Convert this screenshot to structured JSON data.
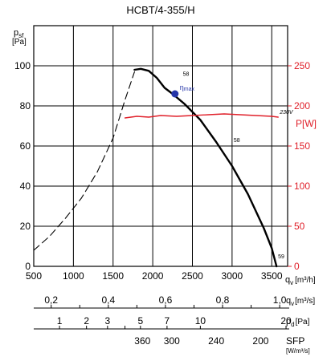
{
  "chart_data": {
    "type": "line",
    "title": "HCBT/4-355/H",
    "y_left_label_main": "p",
    "y_left_label_sub": "sf",
    "y_left_unit": "[Pa]",
    "y_right_label": "P[W]",
    "x_label_main": "q",
    "x_label_sub": "v",
    "x_unit": "[m³/h]",
    "xlim": [
      500,
      3700
    ],
    "ylim_left": [
      0,
      120
    ],
    "ylim_right": [
      0,
      300
    ],
    "x_ticks": [
      500,
      1000,
      1500,
      2000,
      2500,
      3000,
      3500
    ],
    "x_tick_labels": [
      "500",
      "1000",
      "1500",
      "2000",
      "2500",
      "3000",
      "3500"
    ],
    "y_left_ticks": [
      0,
      20,
      40,
      60,
      80,
      100
    ],
    "y_left_tick_labels": [
      "0",
      "20",
      "40",
      "60",
      "80",
      "100"
    ],
    "y_right_ticks": [
      0,
      50,
      100,
      150,
      200,
      250
    ],
    "y_right_tick_labels": [
      "0",
      "50",
      "100",
      "150",
      "200",
      "250"
    ],
    "grid": true,
    "series": [
      {
        "name": "",
        "axis": "left",
        "style": "dashed",
        "x": [
          500,
          700,
          900,
          1100,
          1300,
          1500,
          1650,
          1770
        ],
        "y": [
          8,
          15,
          24,
          34,
          47,
          64,
          83,
          97
        ]
      },
      {
        "name": "",
        "axis": "left",
        "style": "solid",
        "x": [
          1770,
          1850,
          1950,
          2050,
          2150,
          2250,
          2400,
          2600,
          2800,
          3000,
          3200,
          3400,
          3500,
          3560
        ],
        "y": [
          98,
          98.5,
          97.5,
          94,
          89,
          86,
          81,
          73,
          62,
          50,
          36,
          19,
          9,
          0
        ]
      },
      {
        "name": "230V",
        "axis": "right",
        "style": "solid",
        "color": "#e0202a",
        "x": [
          1650,
          1800,
          1950,
          2100,
          2300,
          2500,
          2700,
          2900,
          3100,
          3300,
          3500,
          3580
        ],
        "y": [
          185,
          187,
          186,
          188,
          187,
          188,
          189,
          190,
          189,
          188,
          187,
          186
        ]
      }
    ],
    "eta_point": {
      "x": 2280,
      "y": 86,
      "label_main": "η",
      "label_sub": "max",
      "color": "#2535a8"
    },
    "curve_labels": [
      {
        "text": "58",
        "x": 2380,
        "y": 95
      },
      {
        "text": "58",
        "x": 3020,
        "y": 62
      },
      {
        "text": "59",
        "x": 3580,
        "y": 4
      }
    ],
    "bottom_scales": [
      {
        "id": "m3s",
        "label_main": "q",
        "label_sub": "v",
        "unit": "[m³/s]",
        "ticks": [
          {
            "value": 0.2,
            "label": "0,2"
          },
          {
            "value": 0.3,
            "label": ""
          },
          {
            "value": 0.4,
            "label": "0,4"
          },
          {
            "value": 0.5,
            "label": ""
          },
          {
            "value": 0.6,
            "label": "0,6"
          },
          {
            "value": 0.7,
            "label": ""
          },
          {
            "value": 0.8,
            "label": "0,8"
          },
          {
            "value": 0.9,
            "label": ""
          },
          {
            "value": 1.0,
            "label": "1,0"
          }
        ]
      },
      {
        "id": "pd",
        "label_main": "p",
        "label_sub": "d",
        "unit": "[Pa]",
        "ticks": [
          {
            "value": 1,
            "label": "1",
            "qv": 825
          },
          {
            "value": 2,
            "label": "2",
            "qv": 1165
          },
          {
            "value": 3,
            "label": "3",
            "qv": 1430
          },
          {
            "value": 4,
            "label": "",
            "qv": 1650
          },
          {
            "value": 5,
            "label": "5",
            "qv": 1845
          },
          {
            "value": 7,
            "label": "7",
            "qv": 2180
          },
          {
            "value": 10,
            "label": "10",
            "qv": 2600
          },
          {
            "value": 20,
            "label": "20",
            "qv": 3680
          }
        ]
      },
      {
        "id": "sfp",
        "label_main": "SFP",
        "unit": "[W/m³/s]",
        "ticks": [
          {
            "value": 360,
            "label": "360",
            "qv": 1870
          },
          {
            "value": 300,
            "label": "300",
            "qv": 2240
          },
          {
            "value": 240,
            "label": "240",
            "qv": 2800
          },
          {
            "value": 200,
            "label": "200",
            "qv": 3360
          }
        ]
      }
    ]
  }
}
